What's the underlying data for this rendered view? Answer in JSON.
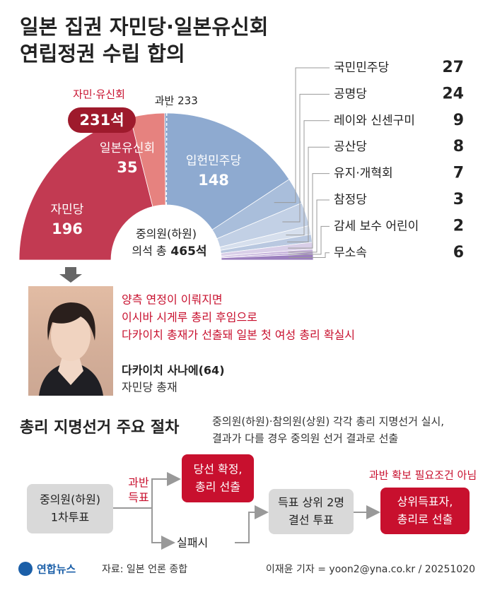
{
  "title": [
    "일본 집권 자민당·일본유신회",
    "연립정권 수립 합의"
  ],
  "chart_data": {
    "type": "semicircle",
    "categories": [
      "자민당",
      "일본유신회",
      "입헌민주당",
      "국민민주당",
      "공명당",
      "레이와 신센구미",
      "공산당",
      "유지·개혁회",
      "참정당",
      "감세 보수 어린이",
      "무소속"
    ],
    "values": [
      196,
      35,
      148,
      27,
      24,
      9,
      8,
      7,
      3,
      2,
      6
    ],
    "colors": [
      "#c23a52",
      "#e6827f",
      "#8eaad0",
      "#a9bedb",
      "#c2d0e5",
      "#d6dfed",
      "#b9c8e0",
      "#d9cfe8",
      "#c7b4dc",
      "#ae95cc",
      "#9b7fbe"
    ],
    "majority": {
      "value": 233,
      "label": "과반 233"
    },
    "coalition": {
      "name": "자민·유신회",
      "value": 231,
      "label": "231석"
    },
    "total": {
      "name": [
        "중의원(하원)",
        "의석 총"
      ],
      "value": 465,
      "label": "465석"
    }
  },
  "profile": {
    "quote": [
      "양측 연정이 이뤄지면",
      "이시바 시게루 총리 후임으로",
      "다카이치 총재가 선출돼 일본 첫 여성 총리 확실시"
    ],
    "name": "다카이치 사나에(64)",
    "role": "자민당 총재"
  },
  "procedure": {
    "title": "총리 지명선거 주요 절차",
    "note": [
      "중의원(하원)·참의원(상원) 각각 총리 지명선거 실시,",
      "결과가 다를 경우 중의원 선거 결과로 선출"
    ],
    "start": [
      "중의원(하원)",
      "1차투표"
    ],
    "win_label": [
      "과반",
      "득표"
    ],
    "win": [
      "당선 확정,",
      "총리 선출"
    ],
    "fail_label": "실패시",
    "runoff": [
      "득표 상위 2명",
      "결선 투표"
    ],
    "runoff_note": "과반 확보 필요조건 아님",
    "final": [
      "상위득표자,",
      "총리로 선출"
    ]
  },
  "footer": {
    "logo": "연합뉴스",
    "source": "자료: 일본 언론 종합",
    "credit": "이재윤 기자 = yoon2@yna.co.kr / 20251020"
  }
}
